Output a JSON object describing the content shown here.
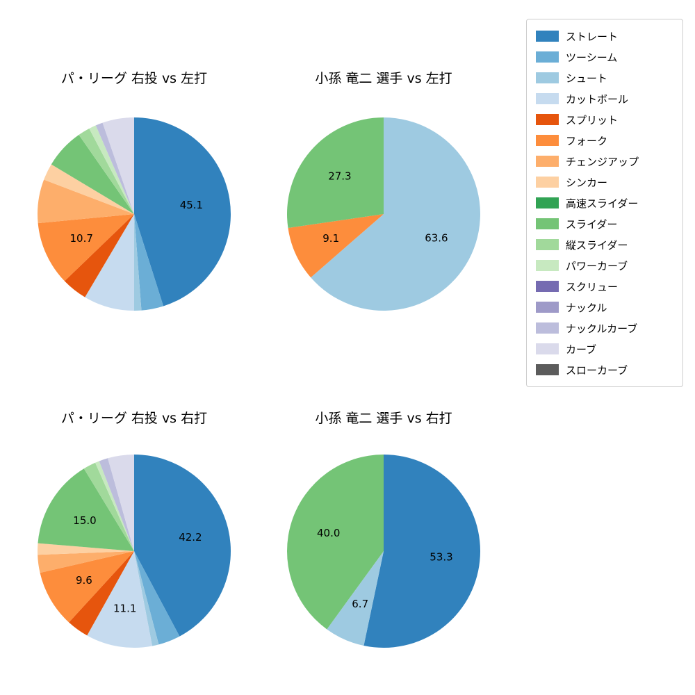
{
  "figure": {
    "background": "#ffffff"
  },
  "legend": {
    "entries": [
      {
        "label": "ストレート",
        "color": "#3182bd"
      },
      {
        "label": "ツーシーム",
        "color": "#6baed6"
      },
      {
        "label": "シュート",
        "color": "#9ecae1"
      },
      {
        "label": "カットボール",
        "color": "#c6dbef"
      },
      {
        "label": "スプリット",
        "color": "#e6550d"
      },
      {
        "label": "フォーク",
        "color": "#fd8d3c"
      },
      {
        "label": "チェンジアップ",
        "color": "#fdae6b"
      },
      {
        "label": "シンカー",
        "color": "#fdd0a2"
      },
      {
        "label": "高速スライダー",
        "color": "#31a354"
      },
      {
        "label": "スライダー",
        "color": "#74c476"
      },
      {
        "label": "縦スライダー",
        "color": "#a1d99b"
      },
      {
        "label": "パワーカーブ",
        "color": "#c7e9c0"
      },
      {
        "label": "スクリュー",
        "color": "#756bb1"
      },
      {
        "label": "ナックル",
        "color": "#9e9ac8"
      },
      {
        "label": "ナックルカーブ",
        "color": "#bcbddc"
      },
      {
        "label": "カーブ",
        "color": "#dadaeb"
      },
      {
        "label": "スローカーブ",
        "color": "#5c5c5c"
      }
    ]
  },
  "chart_data": [
    {
      "type": "pie",
      "title": "パ・リーグ 右投 vs 左打",
      "start_angle_deg": 0,
      "direction": "clockwise",
      "pct_distance": 0.6,
      "slices": [
        {
          "label": "ストレート",
          "value": 45.1,
          "show_value": true
        },
        {
          "label": "ツーシーム",
          "value": 3.7,
          "show_value": false
        },
        {
          "label": "シュート",
          "value": 1.2,
          "show_value": false
        },
        {
          "label": "カットボール",
          "value": 8.5,
          "show_value": false
        },
        {
          "label": "スプリット",
          "value": 4.3,
          "show_value": false
        },
        {
          "label": "フォーク",
          "value": 10.7,
          "show_value": true
        },
        {
          "label": "チェンジアップ",
          "value": 7.3,
          "show_value": false
        },
        {
          "label": "シンカー",
          "value": 2.8,
          "show_value": false
        },
        {
          "label": "スライダー",
          "value": 6.7,
          "show_value": false
        },
        {
          "label": "縦スライダー",
          "value": 2.0,
          "show_value": false
        },
        {
          "label": "パワーカーブ",
          "value": 1.2,
          "show_value": false
        },
        {
          "label": "ナックルカーブ",
          "value": 1.2,
          "show_value": false
        },
        {
          "label": "カーブ",
          "value": 5.3,
          "show_value": false
        }
      ]
    },
    {
      "type": "pie",
      "title": "小孫 竜二 選手 vs 左打",
      "start_angle_deg": 0,
      "direction": "clockwise",
      "pct_distance": 0.6,
      "slices": [
        {
          "label": "シュート",
          "value": 63.6,
          "show_value": true
        },
        {
          "label": "フォーク",
          "value": 9.1,
          "show_value": true
        },
        {
          "label": "スライダー",
          "value": 27.3,
          "show_value": true
        }
      ]
    },
    {
      "type": "pie",
      "title": "パ・リーグ 右投 vs 右打",
      "start_angle_deg": 0,
      "direction": "clockwise",
      "pct_distance": 0.6,
      "slices": [
        {
          "label": "ストレート",
          "value": 42.2,
          "show_value": true
        },
        {
          "label": "ツーシーム",
          "value": 3.7,
          "show_value": false
        },
        {
          "label": "シュート",
          "value": 1.1,
          "show_value": false
        },
        {
          "label": "カットボール",
          "value": 11.1,
          "show_value": true
        },
        {
          "label": "スプリット",
          "value": 3.7,
          "show_value": false
        },
        {
          "label": "フォーク",
          "value": 9.6,
          "show_value": true
        },
        {
          "label": "チェンジアップ",
          "value": 3.0,
          "show_value": false
        },
        {
          "label": "シンカー",
          "value": 1.9,
          "show_value": false
        },
        {
          "label": "スライダー",
          "value": 15.0,
          "show_value": true
        },
        {
          "label": "縦スライダー",
          "value": 2.1,
          "show_value": false
        },
        {
          "label": "パワーカーブ",
          "value": 0.7,
          "show_value": false
        },
        {
          "label": "ナックルカーブ",
          "value": 1.5,
          "show_value": false
        },
        {
          "label": "カーブ",
          "value": 4.4,
          "show_value": false
        }
      ]
    },
    {
      "type": "pie",
      "title": "小孫 竜二 選手 vs 右打",
      "start_angle_deg": 0,
      "direction": "clockwise",
      "pct_distance": 0.6,
      "slices": [
        {
          "label": "ストレート",
          "value": 53.3,
          "show_value": true
        },
        {
          "label": "シュート",
          "value": 6.7,
          "show_value": true
        },
        {
          "label": "スライダー",
          "value": 40.0,
          "show_value": true
        }
      ]
    }
  ]
}
